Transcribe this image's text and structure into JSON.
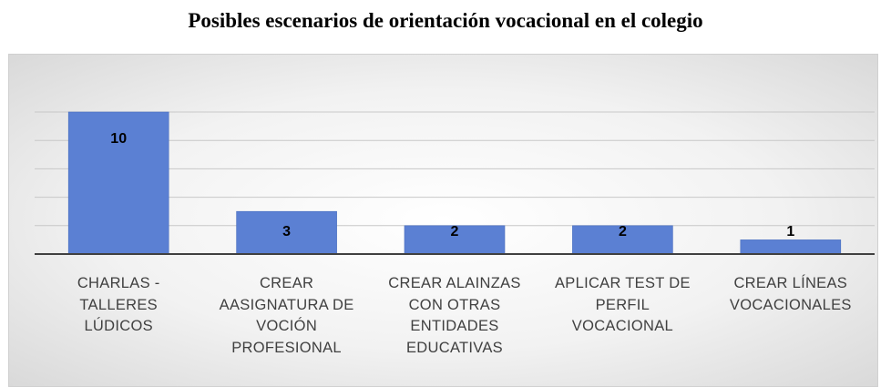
{
  "chart_data": {
    "type": "bar",
    "title": "Posibles escenarios de orientación vocacional en el colegio",
    "categories": [
      "CHARLAS -\nTALLERES\nLÚDICOS",
      "CREAR\nAASIGNATURA DE\nVOCIÓN\nPROFESIONAL",
      "CREAR ALAINZAS\nCON OTRAS\nENTIDADES\nEDUCATIVAS",
      "APLICAR TEST DE\nPERFIL\nVOCACIONAL",
      "CREAR LÍNEAS\nVOCACIONALES"
    ],
    "values": [
      10,
      3,
      2,
      2,
      1
    ],
    "color": "#5b80d3",
    "ylim": [
      0,
      10
    ],
    "yticks": [
      0,
      2,
      4,
      6,
      8,
      10
    ],
    "grid": true
  }
}
